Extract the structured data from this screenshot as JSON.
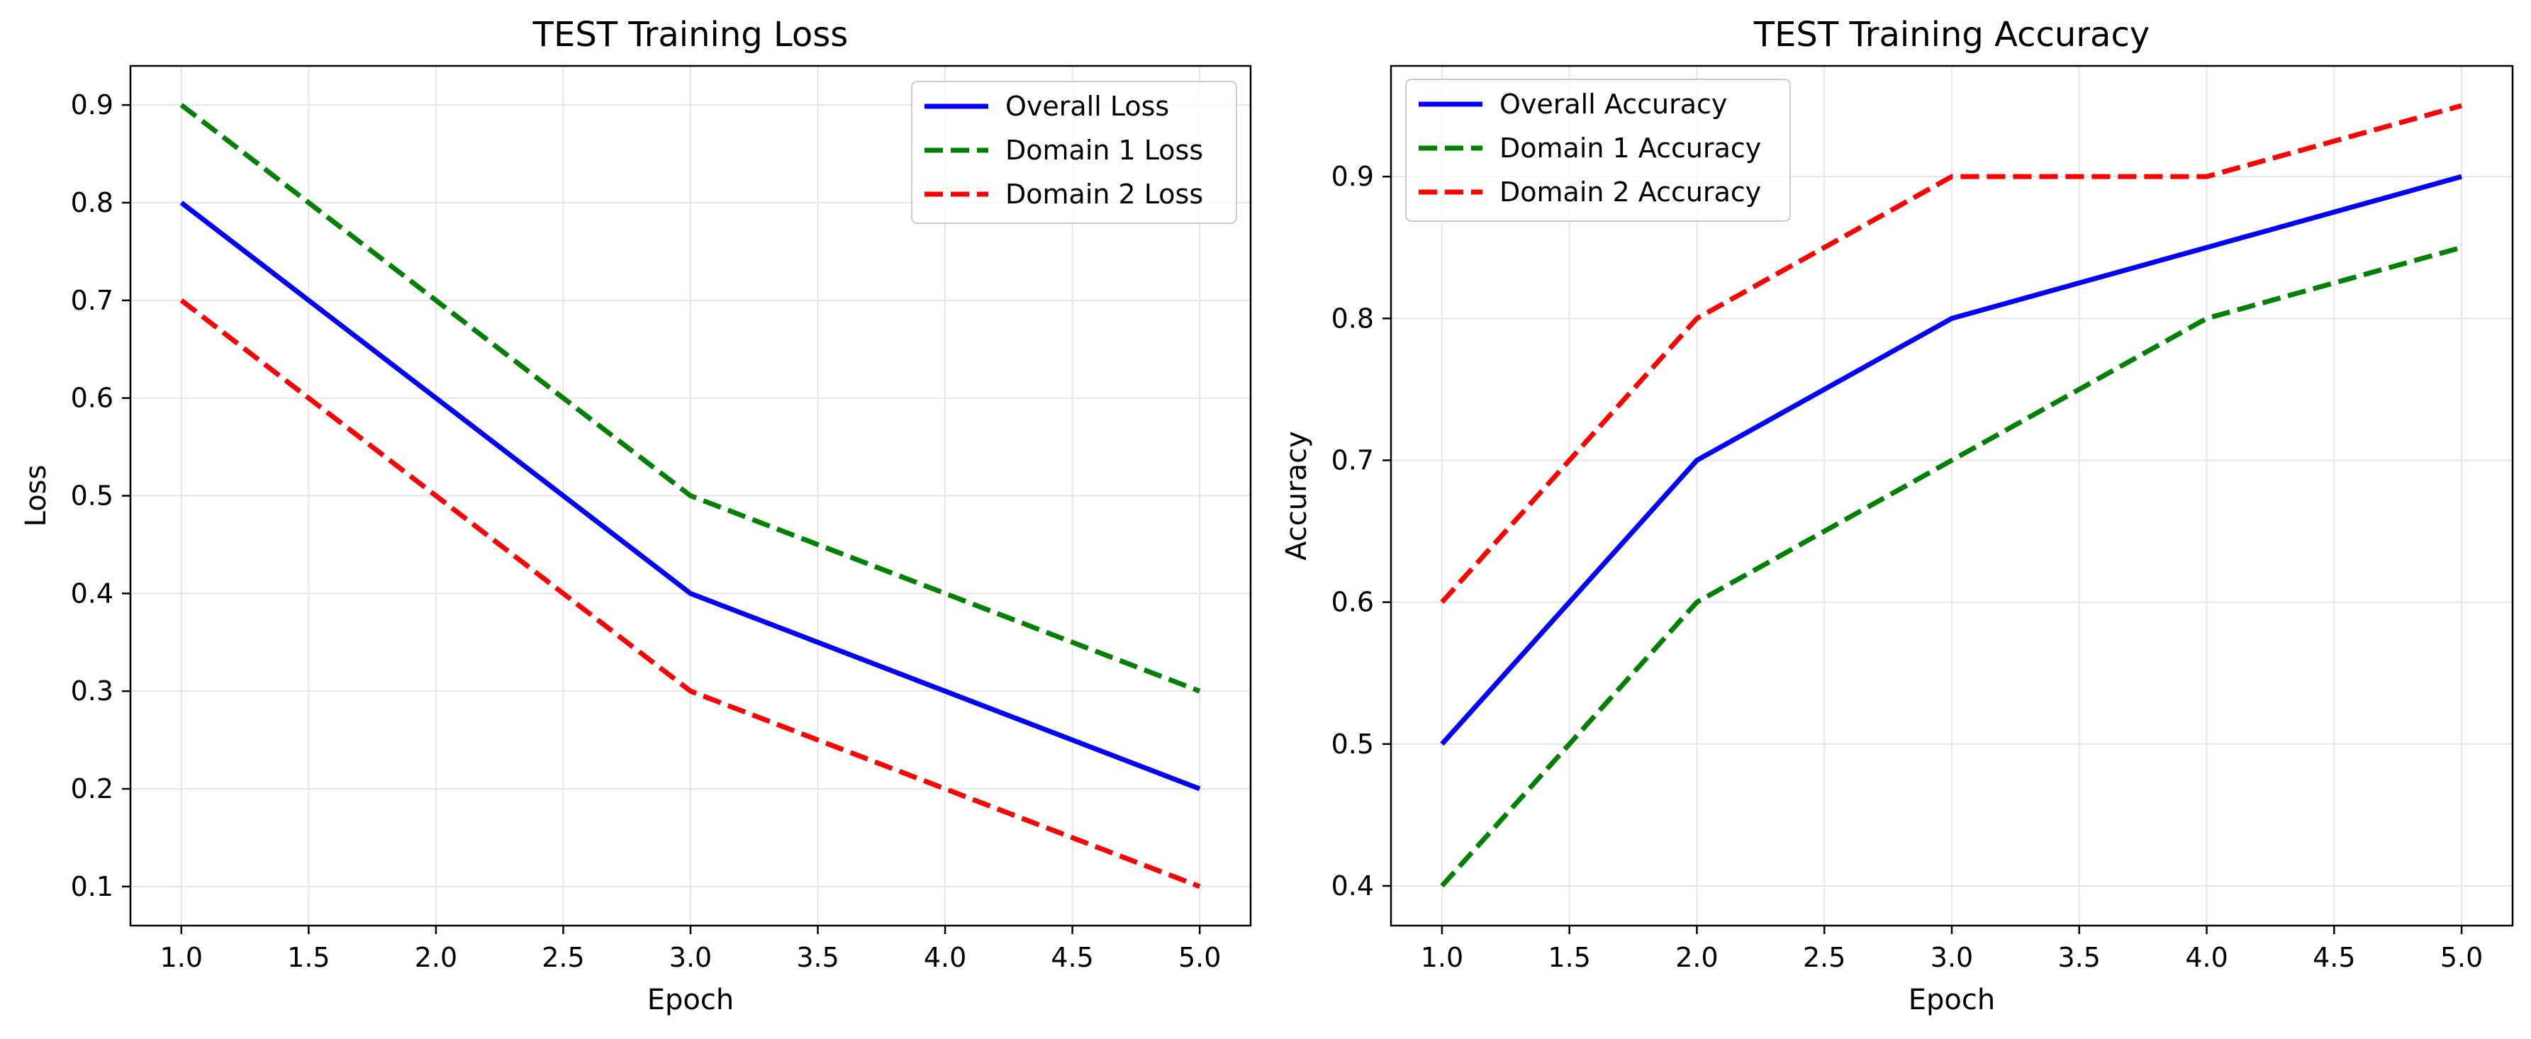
{
  "chart_data": [
    {
      "type": "line",
      "title": "TEST Training Loss",
      "xlabel": "Epoch",
      "ylabel": "Loss",
      "x": [
        1,
        2,
        3,
        4,
        5
      ],
      "xlim": [
        0.8,
        5.2
      ],
      "ylim": [
        0.06,
        0.94
      ],
      "xticks": [
        1.0,
        1.5,
        2.0,
        2.5,
        3.0,
        3.5,
        4.0,
        4.5,
        5.0
      ],
      "xtick_labels": [
        "1.0",
        "1.5",
        "2.0",
        "2.5",
        "3.0",
        "3.5",
        "4.0",
        "4.5",
        "5.0"
      ],
      "yticks": [
        0.1,
        0.2,
        0.3,
        0.4,
        0.5,
        0.6,
        0.7,
        0.8,
        0.9
      ],
      "ytick_labels": [
        "0.1",
        "0.2",
        "0.3",
        "0.4",
        "0.5",
        "0.6",
        "0.7",
        "0.8",
        "0.9"
      ],
      "grid": true,
      "legend_position": "upper right",
      "series": [
        {
          "name": "Overall Loss",
          "values": [
            0.8,
            0.6,
            0.4,
            0.3,
            0.2
          ],
          "color": "#0000ff",
          "linestyle": "solid"
        },
        {
          "name": "Domain 1 Loss",
          "values": [
            0.9,
            0.7,
            0.5,
            0.4,
            0.3
          ],
          "color": "#008000",
          "linestyle": "dashed"
        },
        {
          "name": "Domain 2 Loss",
          "values": [
            0.7,
            0.5,
            0.3,
            0.2,
            0.1
          ],
          "color": "#ff0000",
          "linestyle": "dashed"
        }
      ]
    },
    {
      "type": "line",
      "title": "TEST Training Accuracy",
      "xlabel": "Epoch",
      "ylabel": "Accuracy",
      "x": [
        1,
        2,
        3,
        4,
        5
      ],
      "xlim": [
        0.8,
        5.2
      ],
      "ylim": [
        0.372,
        0.978
      ],
      "xticks": [
        1.0,
        1.5,
        2.0,
        2.5,
        3.0,
        3.5,
        4.0,
        4.5,
        5.0
      ],
      "xtick_labels": [
        "1.0",
        "1.5",
        "2.0",
        "2.5",
        "3.0",
        "3.5",
        "4.0",
        "4.5",
        "5.0"
      ],
      "yticks": [
        0.4,
        0.5,
        0.6,
        0.7,
        0.8,
        0.9
      ],
      "ytick_labels": [
        "0.4",
        "0.5",
        "0.6",
        "0.7",
        "0.8",
        "0.9"
      ],
      "grid": true,
      "legend_position": "upper left",
      "series": [
        {
          "name": "Overall Accuracy",
          "values": [
            0.5,
            0.7,
            0.8,
            0.85,
            0.9
          ],
          "color": "#0000ff",
          "linestyle": "solid"
        },
        {
          "name": "Domain 1 Accuracy",
          "values": [
            0.4,
            0.6,
            0.7,
            0.8,
            0.85
          ],
          "color": "#008000",
          "linestyle": "dashed"
        },
        {
          "name": "Domain 2 Accuracy",
          "values": [
            0.6,
            0.8,
            0.9,
            0.9,
            0.95
          ],
          "color": "#ff0000",
          "linestyle": "dashed"
        }
      ]
    }
  ]
}
